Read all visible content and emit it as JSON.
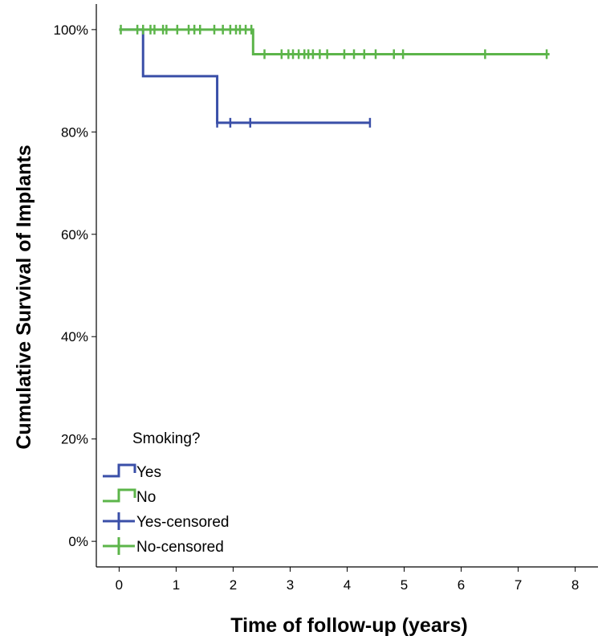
{
  "chart_data": {
    "type": "line",
    "subtype": "kaplan-meier",
    "xlabel": "Time of follow-up (years)",
    "ylabel": "Cumulative Survival of Implants",
    "xlim": [
      -0.4,
      8.4
    ],
    "ylim": [
      -0.05,
      1.05
    ],
    "x_ticks": [
      0,
      1,
      2,
      3,
      4,
      5,
      6,
      7,
      8
    ],
    "y_ticks": [
      0,
      0.2,
      0.4,
      0.6,
      0.8,
      1.0
    ],
    "x_tick_labels": [
      "0",
      "1",
      "2",
      "3",
      "4",
      "5",
      "6",
      "7",
      "8"
    ],
    "y_tick_labels": [
      "0%",
      "20%",
      "40%",
      "60%",
      "80%",
      "100%"
    ],
    "grid": false,
    "legend": {
      "title": "Smoking?",
      "position": "bottom-left",
      "entries": [
        {
          "label": "Yes",
          "kind": "step",
          "color": "#3a4fa8"
        },
        {
          "label": "No",
          "kind": "step",
          "color": "#5cb54a"
        },
        {
          "label": "Yes-censored",
          "kind": "censor",
          "color": "#3a4fa8"
        },
        {
          "label": "No-censored",
          "kind": "censor",
          "color": "#5cb54a"
        }
      ]
    },
    "series": [
      {
        "name": "Yes",
        "color": "#3a4fa8",
        "steps": [
          [
            0,
            1.0
          ],
          [
            0.42,
            0.909
          ],
          [
            1.72,
            0.818
          ],
          [
            4.4,
            0.818
          ]
        ],
        "censored": [
          [
            1.72,
            0.818
          ],
          [
            1.95,
            0.818
          ],
          [
            2.3,
            0.818
          ],
          [
            4.4,
            0.818
          ]
        ]
      },
      {
        "name": "No",
        "color": "#5cb54a",
        "steps": [
          [
            0,
            1.0
          ],
          [
            2.35,
            0.952
          ],
          [
            7.55,
            0.952
          ]
        ],
        "censored": [
          [
            0.03,
            1.0
          ],
          [
            0.32,
            1.0
          ],
          [
            0.42,
            1.0
          ],
          [
            0.55,
            1.0
          ],
          [
            0.62,
            1.0
          ],
          [
            0.77,
            1.0
          ],
          [
            0.83,
            1.0
          ],
          [
            1.02,
            1.0
          ],
          [
            1.22,
            1.0
          ],
          [
            1.32,
            1.0
          ],
          [
            1.42,
            1.0
          ],
          [
            1.67,
            1.0
          ],
          [
            1.82,
            1.0
          ],
          [
            1.95,
            1.0
          ],
          [
            2.05,
            1.0
          ],
          [
            2.12,
            1.0
          ],
          [
            2.22,
            1.0
          ],
          [
            2.32,
            1.0
          ],
          [
            2.55,
            0.952
          ],
          [
            2.85,
            0.952
          ],
          [
            2.97,
            0.952
          ],
          [
            3.05,
            0.952
          ],
          [
            3.15,
            0.952
          ],
          [
            3.25,
            0.952
          ],
          [
            3.32,
            0.952
          ],
          [
            3.4,
            0.952
          ],
          [
            3.52,
            0.952
          ],
          [
            3.65,
            0.952
          ],
          [
            3.95,
            0.952
          ],
          [
            4.12,
            0.952
          ],
          [
            4.3,
            0.952
          ],
          [
            4.5,
            0.952
          ],
          [
            4.82,
            0.952
          ],
          [
            4.98,
            0.952
          ],
          [
            6.42,
            0.952
          ],
          [
            7.5,
            0.952
          ]
        ]
      }
    ]
  }
}
